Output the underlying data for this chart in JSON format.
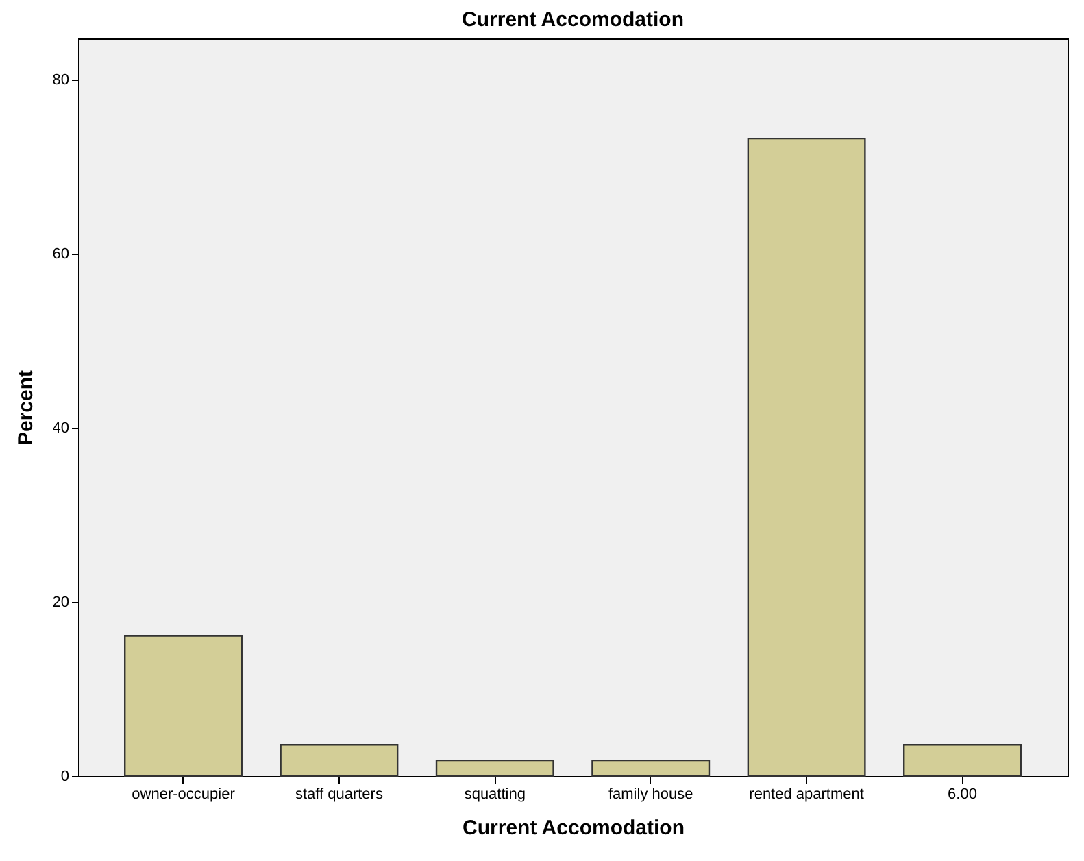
{
  "chart_data": {
    "type": "bar",
    "title": "Current Accomodation",
    "xlabel": "Current Accomodation",
    "ylabel": "Percent",
    "categories": [
      "owner-occupier",
      "staff quarters",
      "squatting",
      "family house",
      "rented apartment",
      "6.00"
    ],
    "values": [
      16.1,
      3.6,
      1.8,
      1.8,
      73.2,
      3.6
    ],
    "color": "#d3ce97",
    "ylim": [
      0,
      84.7
    ],
    "yticks": [
      0,
      20,
      40,
      60,
      80
    ],
    "grid": false
  }
}
